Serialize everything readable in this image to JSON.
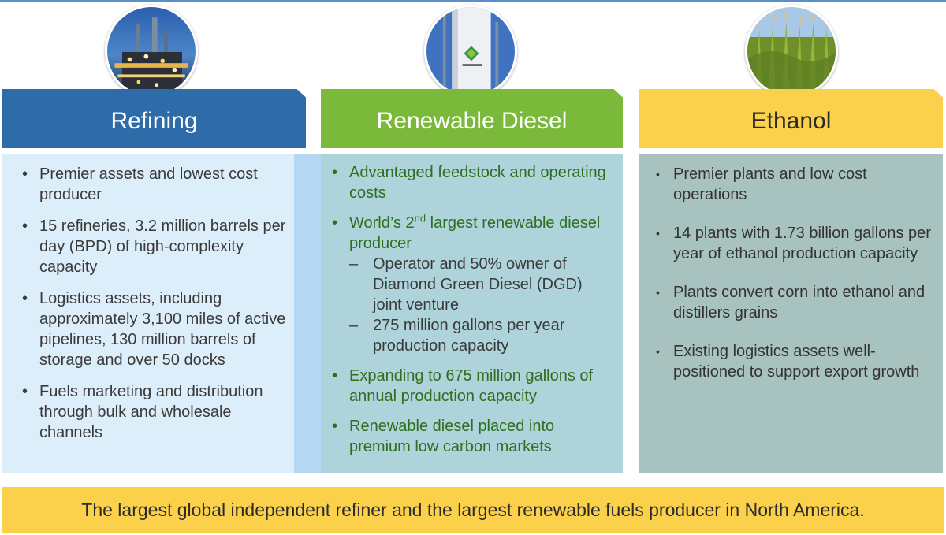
{
  "columns": [
    {
      "title": "Refining",
      "header_color": "#2d6ca8",
      "panel_color": "#ddeefb",
      "photo": "refinery-photo",
      "bullets": [
        "Premier assets and lowest cost producer",
        "15 refineries, 3.2 million barrels per day (BPD) of high-complexity capacity",
        "Logistics assets, including approximately 3,100 miles of active pipelines, 130 million barrels of storage and over 50 docks",
        "Fuels marketing and distribution through bulk and wholesale channels"
      ]
    },
    {
      "title": "Renewable Diesel",
      "header_color": "#7ab93a",
      "panel_color": "#afd3da",
      "photo": "diamond-green-diesel-tank-photo",
      "bullets": [
        "Advantaged feedstock and operating costs",
        "World’s 2nd largest renewable diesel producer",
        "Expanding to 675 million gallons of annual production capacity",
        "Renewable diesel placed into premium low carbon markets"
      ],
      "sub_bullets": [
        "Operator and 50% owner of Diamond Green Diesel (DGD) joint venture",
        "275 million gallons per year production capacity"
      ],
      "ordinal_prefix": "World’s 2",
      "ordinal_suffix": "nd",
      "ordinal_rest": " largest renewable diesel producer"
    },
    {
      "title": "Ethanol",
      "header_color": "#fbd14b",
      "panel_color": "#a8c2c0",
      "photo": "cornfield-photo",
      "bullets": [
        "Premier plants and low cost operations",
        "14 plants with 1.73 billion gallons per year of ethanol production capacity",
        "Plants convert corn into ethanol and distillers grains",
        "Existing logistics assets well-positioned to support export growth"
      ]
    }
  ],
  "banner": "The largest global independent refiner and the largest renewable fuels producer in North America.",
  "bullet_glyph": "•",
  "dash_glyph": "–"
}
